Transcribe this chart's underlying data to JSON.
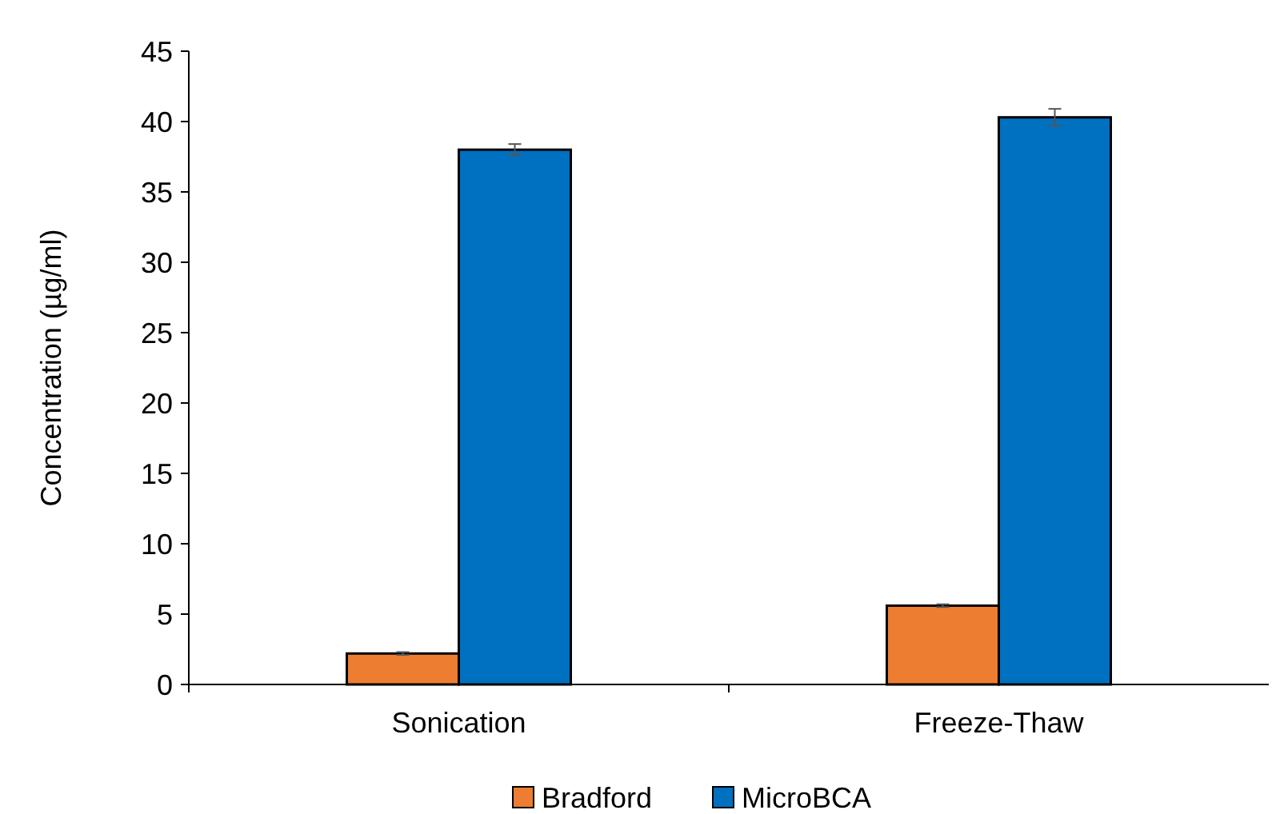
{
  "chart_data": {
    "type": "bar",
    "ylabel": "Concentration (µg/ml)",
    "categories": [
      "Sonication",
      "Freeze-Thaw"
    ],
    "series": [
      {
        "name": "Bradford",
        "color": "#ed7d31",
        "values": [
          2.2,
          5.6
        ],
        "errors": [
          0.1,
          0.1
        ]
      },
      {
        "name": "MicroBCA",
        "color": "#0070c0",
        "values": [
          38.0,
          40.3
        ],
        "errors": [
          0.4,
          0.6
        ]
      }
    ],
    "ylim": [
      0,
      45
    ],
    "yticks": [
      0,
      5,
      10,
      15,
      20,
      25,
      30,
      35,
      40,
      45
    ],
    "grid": false,
    "legend": "bottom"
  }
}
